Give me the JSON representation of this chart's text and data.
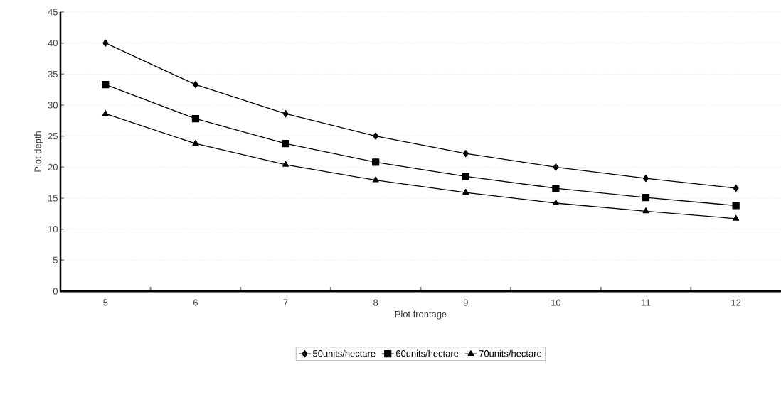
{
  "chart_data": {
    "type": "line",
    "xlabel": "Plot frontage",
    "ylabel": "Plot depth",
    "categories": [
      "5",
      "6",
      "7",
      "8",
      "9",
      "10",
      "11",
      "12"
    ],
    "series": [
      {
        "name": "50units/hectare",
        "color": "#000000",
        "marker": "diamond",
        "values": [
          40,
          33.3,
          28.6,
          25,
          22.2,
          20,
          18.2,
          16.6
        ]
      },
      {
        "name": "60units/hectare",
        "color": "#000000",
        "marker": "square",
        "values": [
          33.3,
          27.8,
          23.8,
          20.8,
          18.5,
          16.6,
          15.1,
          13.8
        ]
      },
      {
        "name": "70units/hectare",
        "color": "#000000",
        "marker": "triangle",
        "values": [
          28.6,
          23.8,
          20.4,
          17.9,
          15.9,
          14.2,
          12.9,
          11.7
        ]
      }
    ],
    "ylim": [
      0,
      45
    ],
    "yticks": [
      0,
      5,
      10,
      15,
      20,
      25,
      30,
      35,
      40,
      45
    ],
    "grid": "y",
    "legend": "bottom",
    "line_style": "solid"
  }
}
